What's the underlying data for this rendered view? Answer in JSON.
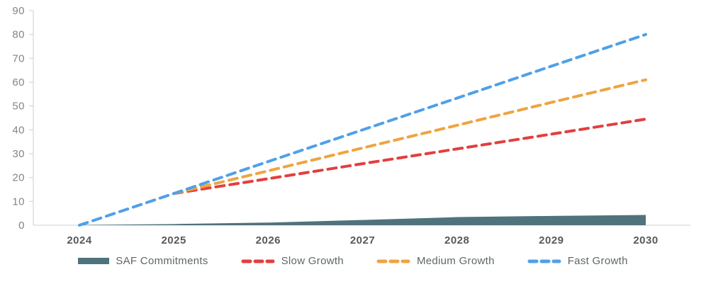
{
  "chart_data": {
    "type": "area",
    "title": "",
    "xlabel": "",
    "ylabel": "",
    "categories": [
      "2024",
      "2025",
      "2026",
      "2027",
      "2028",
      "2029",
      "2030"
    ],
    "y_ticks": [
      0,
      10,
      20,
      30,
      40,
      50,
      60,
      70,
      80,
      90
    ],
    "ylim": [
      0,
      90
    ],
    "grid": false,
    "legend_position": "bottom",
    "series": [
      {
        "name": "SAF Commitments",
        "type": "area",
        "color": "#4E737C",
        "values": [
          0.1,
          0.5,
          1.1,
          2.2,
          3.4,
          3.9,
          4.3
        ]
      },
      {
        "name": "Slow Growth",
        "type": "dashed-line",
        "color": "#E33E3E",
        "values": [
          null,
          13.3,
          19.5,
          25.8,
          32.0,
          38.2,
          44.5
        ]
      },
      {
        "name": "Medium Growth",
        "type": "dashed-line",
        "color": "#EFA43F",
        "values": [
          null,
          13.3,
          22.8,
          32.4,
          41.9,
          51.5,
          61.0
        ]
      },
      {
        "name": "Fast Growth",
        "type": "dashed-line",
        "color": "#4FA0E8",
        "values": [
          0,
          13.3,
          26.7,
          40.0,
          53.3,
          66.7,
          80.0
        ]
      }
    ],
    "colors": {
      "axis_line": "#D9D9D9",
      "y_tick_label": "#848484",
      "x_tick_label": "#595959"
    }
  }
}
